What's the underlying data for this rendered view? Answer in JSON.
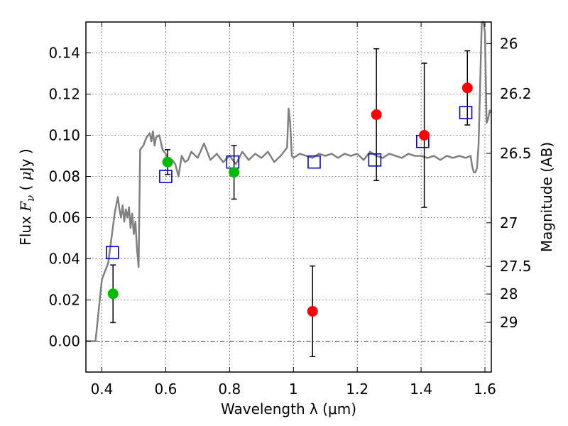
{
  "chart_data": {
    "type": "scatter",
    "xlabel": "Wavelength  λ (μm)",
    "ylabel": "Flux  F_ν  ( μJy )",
    "ylabel_parts": [
      "Flux  ",
      "F",
      "ν",
      "  ( ",
      "μ",
      "Jy )"
    ],
    "y2label": "Magnitude (AB)",
    "xlim": [
      0.35,
      1.62
    ],
    "ylim": [
      -0.015,
      0.155
    ],
    "grid": true,
    "x_ticks": [
      0.4,
      0.6,
      0.8,
      1.0,
      1.2,
      1.4,
      1.6
    ],
    "x_tick_labels": [
      "0.4",
      "0.6",
      "0.8",
      "1",
      "1.2",
      "1.4",
      "1.6"
    ],
    "y_ticks": [
      0.0,
      0.02,
      0.04,
      0.06,
      0.08,
      0.1,
      0.12,
      0.14
    ],
    "y_tick_labels": [
      "0.00",
      "0.02",
      "0.04",
      "0.06",
      "0.08",
      "0.10",
      "0.12",
      "0.14"
    ],
    "mag_ticks": [
      {
        "label": "26",
        "flux": 0.1445
      },
      {
        "label": "26.2",
        "flux": 0.1202
      },
      {
        "label": "26.5",
        "flux": 0.0912
      },
      {
        "label": "27",
        "flux": 0.0575
      },
      {
        "label": "27.5",
        "flux": 0.0363
      },
      {
        "label": "28",
        "flux": 0.0229
      },
      {
        "label": "29",
        "flux": 0.0091
      }
    ],
    "series": [
      {
        "marker": "circle",
        "color": "#00bb00",
        "points": [
          {
            "x": 0.435,
            "y": 0.023,
            "err": 0.014
          },
          {
            "x": 0.606,
            "y": 0.087,
            "err": 0.006
          },
          {
            "x": 0.814,
            "y": 0.082,
            "err": 0.013
          }
        ]
      },
      {
        "marker": "circle",
        "color": "#ff0000",
        "points": [
          {
            "x": 1.06,
            "y": 0.0145,
            "err": 0.022
          },
          {
            "x": 1.26,
            "y": 0.11,
            "err": 0.032
          },
          {
            "x": 1.41,
            "y": 0.1,
            "err": 0.035
          },
          {
            "x": 1.545,
            "y": 0.123,
            "err": 0.018
          }
        ]
      },
      {
        "marker": "square",
        "color": "#0000cc",
        "points": [
          {
            "x": 0.433,
            "y": 0.043
          },
          {
            "x": 0.6,
            "y": 0.08
          },
          {
            "x": 0.81,
            "y": 0.087
          },
          {
            "x": 1.065,
            "y": 0.087
          },
          {
            "x": 1.255,
            "y": 0.088
          },
          {
            "x": 1.405,
            "y": 0.097
          },
          {
            "x": 1.54,
            "y": 0.111
          }
        ]
      },
      {
        "marker": "line",
        "color": "#808080",
        "x": [
          0.35,
          0.38,
          0.39,
          0.4,
          0.41,
          0.42,
          0.425,
          0.43,
          0.44,
          0.45,
          0.455,
          0.46,
          0.465,
          0.47,
          0.475,
          0.48,
          0.485,
          0.49,
          0.495,
          0.5,
          0.505,
          0.51,
          0.515,
          0.52,
          0.53,
          0.54,
          0.55,
          0.555,
          0.56,
          0.565,
          0.57,
          0.58,
          0.59,
          0.6,
          0.61,
          0.62,
          0.63,
          0.64,
          0.65,
          0.66,
          0.67,
          0.68,
          0.7,
          0.72,
          0.74,
          0.76,
          0.78,
          0.8,
          0.82,
          0.84,
          0.86,
          0.88,
          0.9,
          0.92,
          0.94,
          0.96,
          0.98,
          0.985,
          0.99,
          0.995,
          1.0,
          1.02,
          1.04,
          1.06,
          1.08,
          1.1,
          1.12,
          1.14,
          1.16,
          1.18,
          1.2,
          1.22,
          1.24,
          1.26,
          1.28,
          1.3,
          1.32,
          1.34,
          1.36,
          1.38,
          1.4,
          1.42,
          1.44,
          1.46,
          1.48,
          1.5,
          1.52,
          1.54,
          1.555,
          1.56,
          1.565,
          1.57,
          1.575,
          1.58,
          1.585,
          1.59,
          1.595,
          1.6,
          1.605,
          1.61,
          1.615,
          1.62
        ],
        "y": [
          0.0,
          0.0,
          0.015,
          0.03,
          0.034,
          0.038,
          0.044,
          0.05,
          0.062,
          0.07,
          0.064,
          0.06,
          0.066,
          0.058,
          0.064,
          0.06,
          0.065,
          0.055,
          0.062,
          0.052,
          0.058,
          0.045,
          0.036,
          0.093,
          0.095,
          0.099,
          0.101,
          0.097,
          0.102,
          0.095,
          0.099,
          0.1,
          0.093,
          0.091,
          0.085,
          0.088,
          0.086,
          0.08,
          0.09,
          0.087,
          0.088,
          0.092,
          0.089,
          0.096,
          0.088,
          0.091,
          0.087,
          0.09,
          0.086,
          0.092,
          0.088,
          0.091,
          0.089,
          0.092,
          0.087,
          0.09,
          0.094,
          0.113,
          0.106,
          0.09,
          0.089,
          0.091,
          0.09,
          0.089,
          0.091,
          0.09,
          0.091,
          0.089,
          0.091,
          0.09,
          0.091,
          0.088,
          0.092,
          0.09,
          0.089,
          0.091,
          0.09,
          0.089,
          0.091,
          0.09,
          0.09,
          0.089,
          0.09,
          0.088,
          0.09,
          0.089,
          0.09,
          0.089,
          0.09,
          0.085,
          0.082,
          0.082,
          0.084,
          0.095,
          0.125,
          0.158,
          0.155,
          0.15,
          0.106,
          0.108,
          0.112,
          0.111
        ]
      }
    ]
  }
}
